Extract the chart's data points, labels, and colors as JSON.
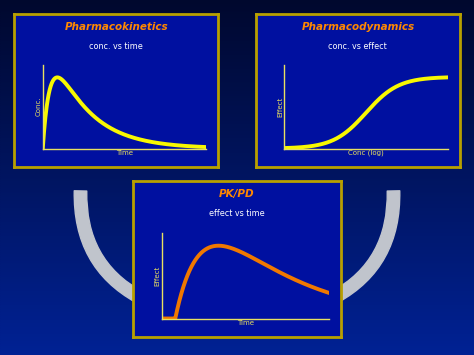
{
  "bg_top_color": "#000830",
  "bg_bottom_color": "#0030a0",
  "box_bg": "#0010a0",
  "box_border": "#b8a000",
  "arrow_color": "#c0c4cc",
  "pk_title": "Pharmacokinetics",
  "pk_subtitle": "conc. vs time",
  "pk_xlabel": "Time",
  "pk_ylabel": "Conc.",
  "pd_title": "Pharmacodynamics",
  "pd_subtitle": "conc. vs effect",
  "pd_xlabel": "Conc (log)",
  "pd_ylabel": "Effect",
  "pkpd_title": "PK/PD",
  "pkpd_subtitle": "effect vs time",
  "pkpd_xlabel": "Time",
  "pkpd_ylabel": "Effect",
  "title_color": "#ff8800",
  "subtitle_color": "#ffffff",
  "axis_label_color": "#e8e060",
  "curve_color_yellow": "#f8f800",
  "curve_color_orange": "#f07800",
  "curve_linewidth": 2.8
}
